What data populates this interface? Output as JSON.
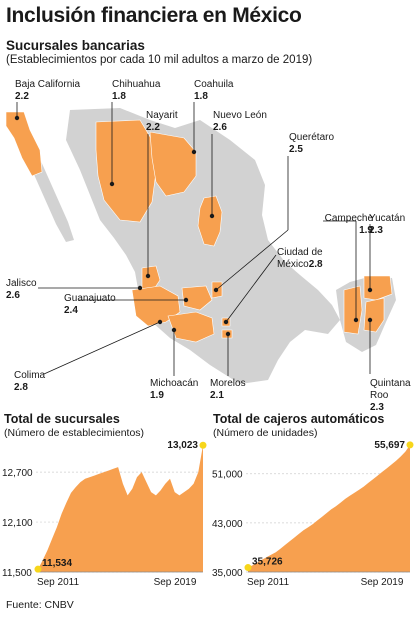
{
  "title": "Inclusión financiera en México",
  "map": {
    "subtitle": "Sucursales bancarias",
    "note": "(Establecimientos por cada 10 mil adultos a marzo de 2019)",
    "states": [
      {
        "name": "Baja California",
        "value": "2.2"
      },
      {
        "name": "Chihuahua",
        "value": "1.8"
      },
      {
        "name": "Coahuila",
        "value": "1.8"
      },
      {
        "name": "Nayarit",
        "value": "2.2"
      },
      {
        "name": "Nuevo León",
        "value": "2.6"
      },
      {
        "name": "Querétaro",
        "value": "2.5"
      },
      {
        "name": "Campeche",
        "value": "1.9"
      },
      {
        "name": "Yucatán",
        "value": "2.3"
      },
      {
        "name": "Ciudad de México",
        "value": "2.8"
      },
      {
        "name": "Jalisco",
        "value": "2.6"
      },
      {
        "name": "Guanajuato",
        "value": "2.4"
      },
      {
        "name": "Colima",
        "value": "2.8"
      },
      {
        "name": "Michoacán",
        "value": "1.9"
      },
      {
        "name": "Morelos",
        "value": "2.1"
      },
      {
        "name": "Quintana Roo",
        "value": "2.3"
      }
    ]
  },
  "colors": {
    "orange": "#f7a04f",
    "gray": "#d2d2d2",
    "yellow": "#f7d61b",
    "text": "#1a1a1a"
  },
  "chart_data": [
    {
      "type": "area",
      "title": "Total de sucursales",
      "subtitle": "(Número de establecimientos)",
      "x_tick_labels": [
        "Sep 2011",
        "Sep 2019"
      ],
      "y_tick_labels": [
        "12,700",
        "12,100",
        "11,500"
      ],
      "ylim": [
        11500,
        13050
      ],
      "grid": true,
      "start": {
        "x": "Sep 2011",
        "value": 11534,
        "label": "11,534"
      },
      "end": {
        "x": "Sep 2019",
        "value": 13023,
        "label": "13,023"
      },
      "values": [
        11534,
        11640,
        11760,
        11900,
        12040,
        12200,
        12330,
        12450,
        12520,
        12580,
        12620,
        12640,
        12660,
        12680,
        12700,
        12720,
        12740,
        12760,
        12560,
        12420,
        12500,
        12640,
        12700,
        12580,
        12460,
        12420,
        12480,
        12560,
        12620,
        12460,
        12420,
        12460,
        12500,
        12560,
        12700,
        13023
      ]
    },
    {
      "type": "area",
      "title": "Total de cajeros automáticos",
      "subtitle": "(Número de unidades)",
      "x_tick_labels": [
        "Sep 2011",
        "Sep 2019"
      ],
      "y_tick_labels": [
        "51,000",
        "43,000",
        "35,000"
      ],
      "ylim": [
        35000,
        56000
      ],
      "grid": true,
      "start": {
        "x": "Sep 2011",
        "value": 35726,
        "label": "35,726"
      },
      "end": {
        "x": "Sep 2019",
        "value": 55697,
        "label": "55,697"
      },
      "values": [
        35726,
        36100,
        36500,
        37000,
        37400,
        37800,
        38200,
        38800,
        39400,
        40000,
        40600,
        41200,
        41800,
        42300,
        42800,
        43400,
        44000,
        44600,
        45200,
        45700,
        46300,
        46900,
        47400,
        47900,
        48400,
        48900,
        49500,
        50100,
        50700,
        51300,
        51900,
        52500,
        53100,
        53800,
        54600,
        55697
      ]
    }
  ],
  "source": "Fuente: CNBV"
}
